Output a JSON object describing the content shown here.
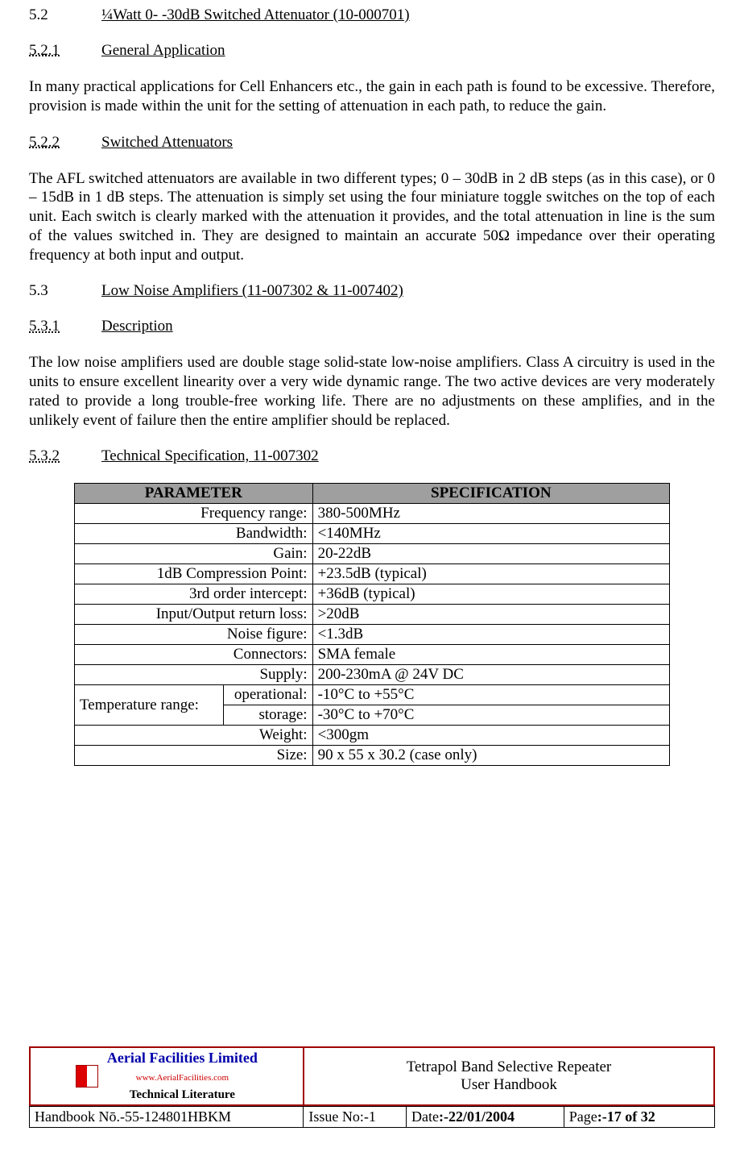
{
  "sections": {
    "s52": {
      "num": "5.2",
      "title": "¼Watt 0- -30dB Switched Attenuator (10-000701)"
    },
    "s521": {
      "num": "5.2.1",
      "title": "General Application",
      "body": "In many practical applications for Cell Enhancers etc., the gain in each path is found to be excessive. Therefore, provision is made within the unit for the setting of attenuation in each path, to reduce the gain."
    },
    "s522": {
      "num": "5.2.2",
      "title": "Switched Attenuators",
      "body": "The AFL switched attenuators are available in two different types; 0 – 30dB in 2 dB steps (as in this case), or 0 – 15dB in 1 dB steps. The attenuation is simply set using the four miniature toggle switches on the top of each unit. Each switch is clearly marked with the attenuation it provides, and the total attenuation in line is the sum of the values switched in. They are designed to maintain an accurate 50Ω impedance over their operating frequency at both input and output."
    },
    "s53": {
      "num": "5.3",
      "title": "Low Noise Amplifiers (11-007302 & 11-007402)"
    },
    "s531": {
      "num": "5.3.1",
      "title": "Description",
      "body": "The low noise amplifiers used are double stage solid-state low-noise amplifiers. Class A circuitry is used in the units to ensure excellent linearity over a very wide dynamic range. The two active devices are very moderately rated to provide a long trouble-free working life. There are no adjustments on these amplifies, and in the unlikely event of failure then the entire amplifier should be replaced."
    },
    "s532": {
      "num": "5.3.2",
      "title": "Technical Specification, 11-007302"
    }
  },
  "spec_table": {
    "header_bg": "#9f9f9f",
    "border_color": "#000000",
    "col_param": "PARAMETER",
    "col_spec": "SPECIFICATION",
    "rows": [
      {
        "p": "Frequency range:",
        "v": "380-500MHz"
      },
      {
        "p": "Bandwidth:",
        "v": "<140MHz"
      },
      {
        "p": "Gain:",
        "v": "20-22dB"
      },
      {
        "p": "1dB Compression Point:",
        "v": "+23.5dB (typical)"
      },
      {
        "p": "3rd order intercept:",
        "v": "+36dB (typical)"
      },
      {
        "p": "Input/Output return loss:",
        "v": ">20dB"
      },
      {
        "p": "Noise figure:",
        "v": "<1.3dB"
      },
      {
        "p": "Connectors:",
        "v": "SMA female"
      },
      {
        "p": "Supply:",
        "v": "200-230mA @ 24V DC"
      }
    ],
    "temp_label": "Temperature range:",
    "temp_rows": [
      {
        "sub": "operational:",
        "v": "-10°C to +55°C"
      },
      {
        "sub": "storage:",
        "v": "-30°C to +70°C"
      }
    ],
    "tail_rows": [
      {
        "p": "Weight:",
        "v": "<300gm"
      },
      {
        "p": "Size:",
        "v": "90 x 55 x 30.2 (case only)"
      }
    ]
  },
  "footer": {
    "logo_line1": "Aerial   Facilities   Limited",
    "logo_line2": "www.AerialFacilities.com",
    "logo_line3": "Technical Literature",
    "title1": "Tetrapol Band Selective Repeater",
    "title2": "User Handbook",
    "handbook_label": "Handbook Nō.-",
    "handbook_no": "55-124801HBKM",
    "issue_label": "Issue No:-",
    "issue_no": "1",
    "date_label": "Date",
    "date_val": ":-22/01/2004",
    "page_label": "Page",
    "page_val": ":-17 of 32",
    "border_color": "#a00000"
  }
}
